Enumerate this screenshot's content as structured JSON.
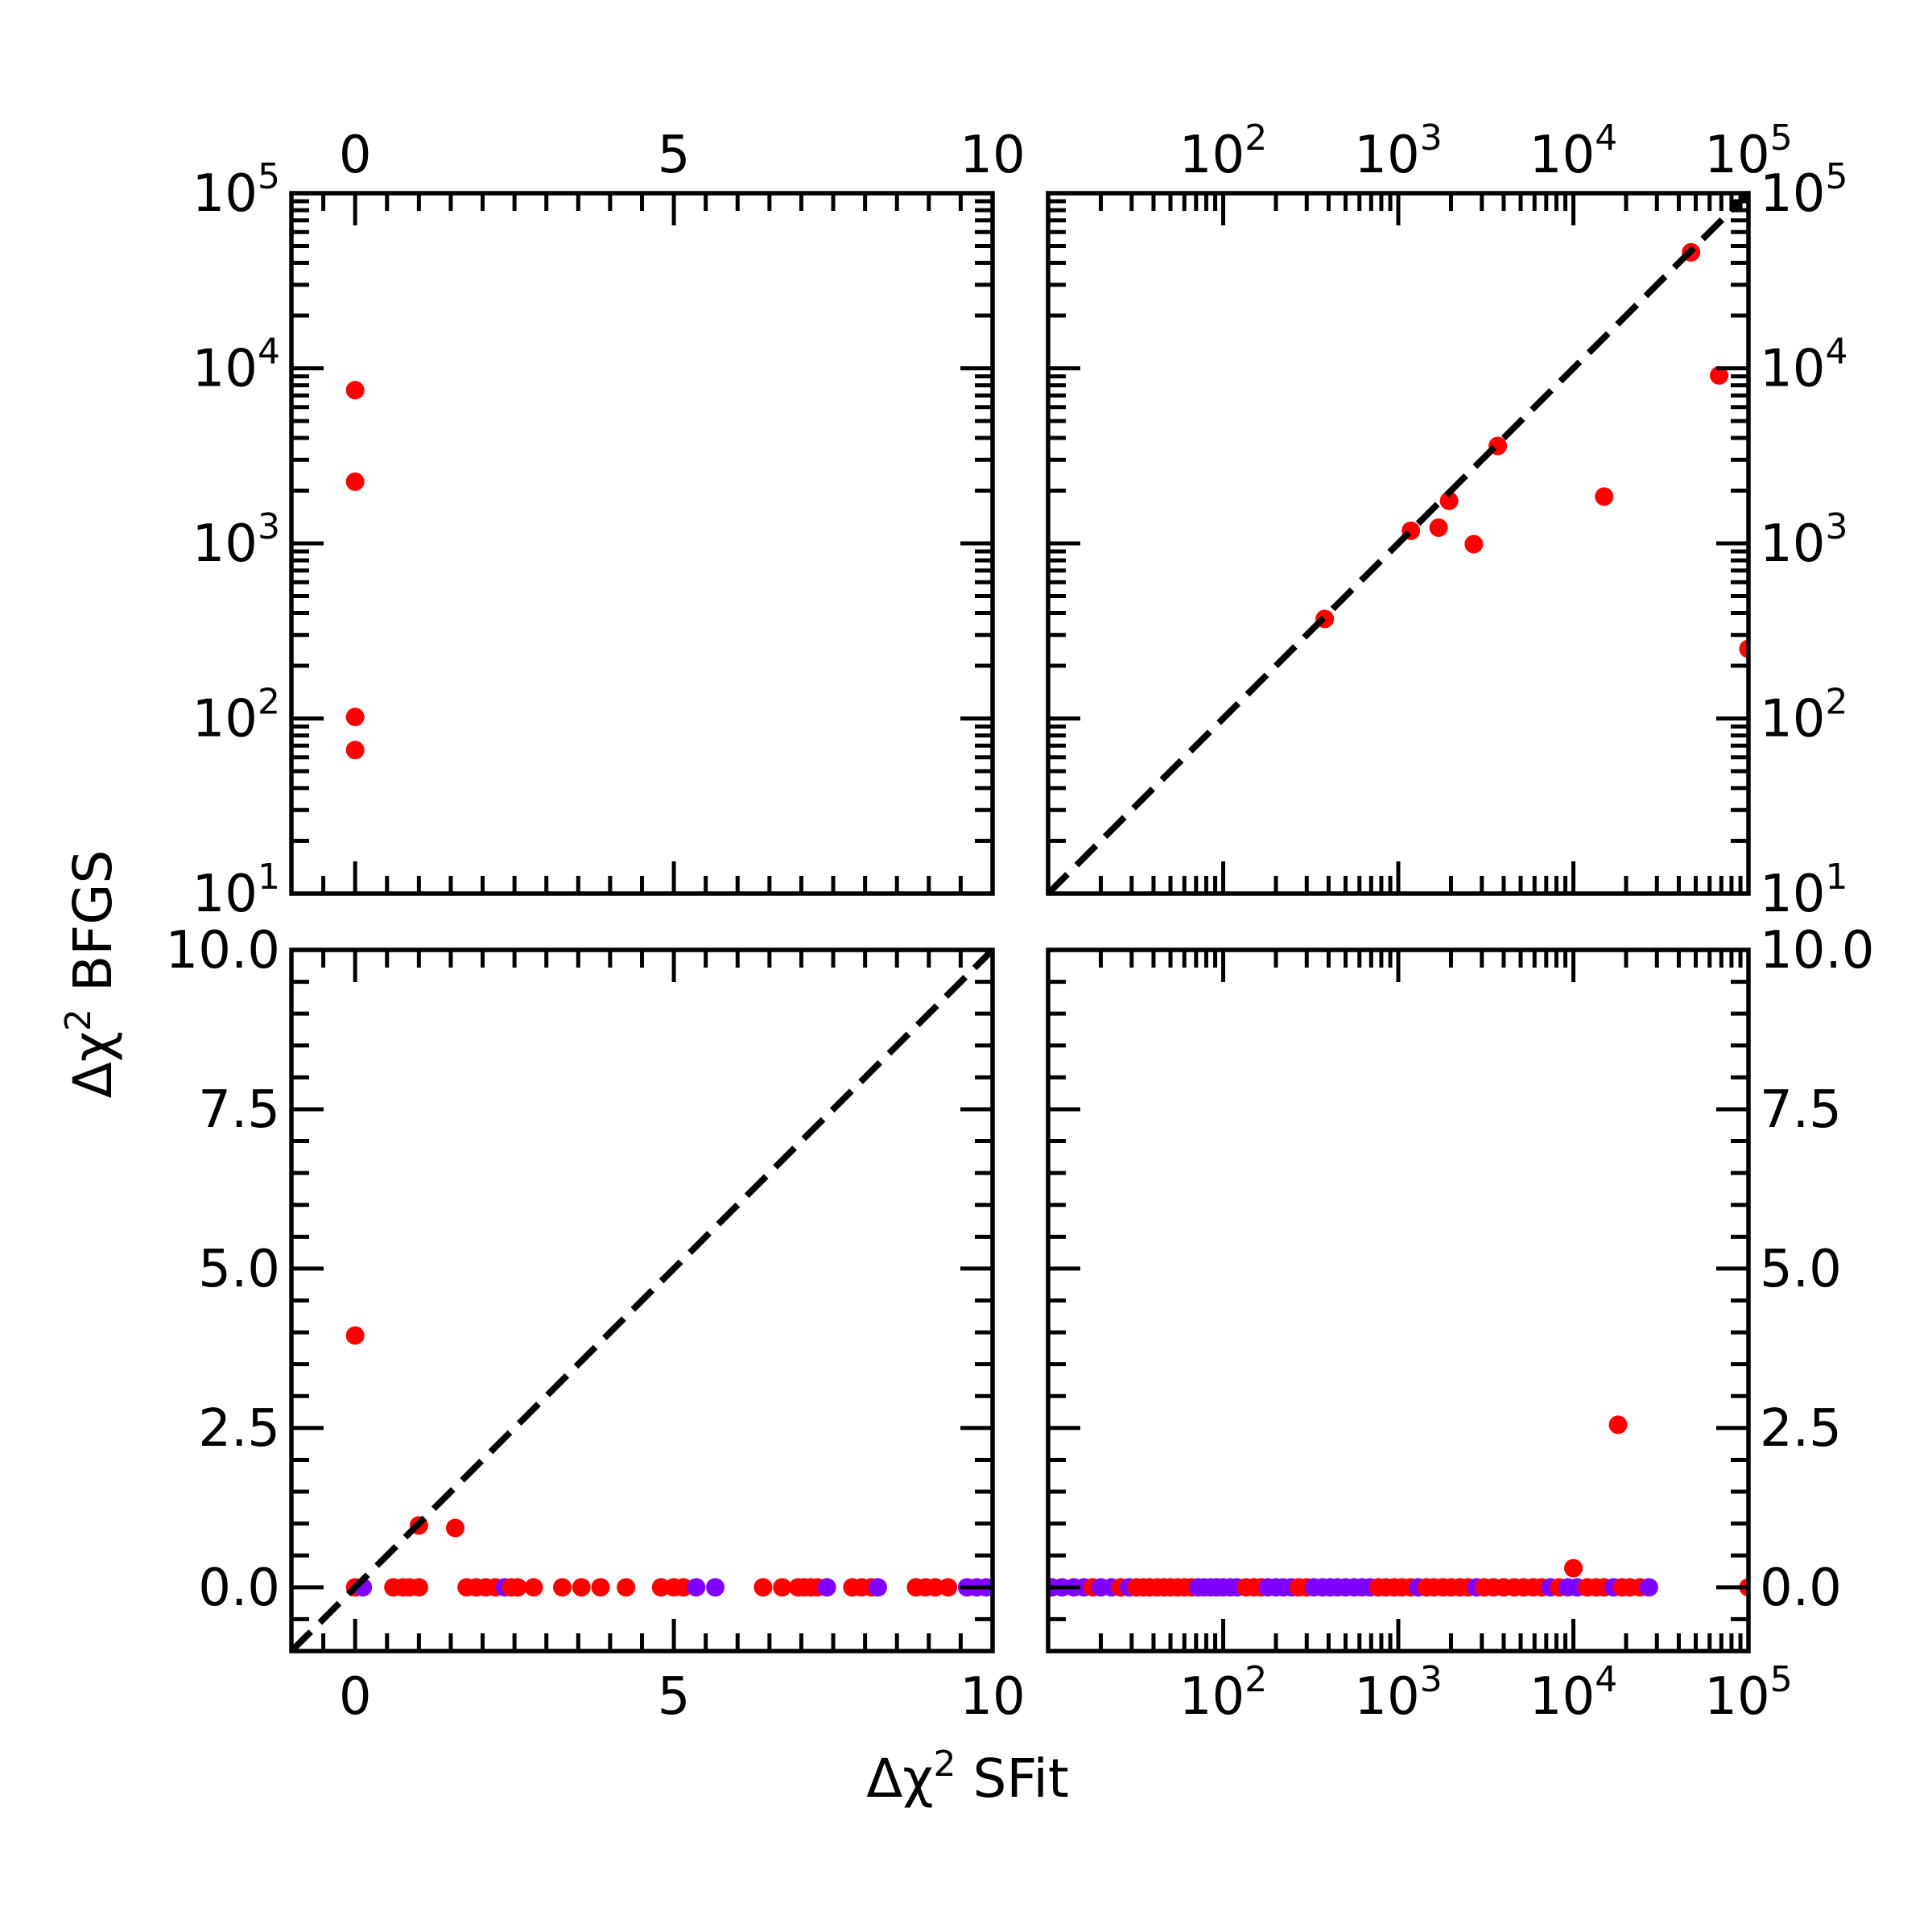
{
  "figure": {
    "xlabel_prefix": "Δχ",
    "xlabel_sup": "2",
    "xlabel_suffix": " SFit",
    "ylabel_prefix": "Δχ",
    "ylabel_sup": "2",
    "ylabel_suffix": " BFGS"
  },
  "colors": {
    "red": "#ff0000",
    "purple": "#7f00ff",
    "axis": "#000000"
  },
  "chart_data": [
    {
      "panel": "top-left",
      "type": "scatter",
      "xscale": "linear",
      "yscale": "log",
      "xlim": [
        -1,
        10
      ],
      "ylim": [
        10,
        100000
      ],
      "xticks": [
        {
          "v": 0,
          "t": "0"
        },
        {
          "v": 5,
          "t": "5"
        },
        {
          "v": 10,
          "t": "10"
        }
      ],
      "yticks": [
        {
          "v": 10,
          "b": "10",
          "e": "1"
        },
        {
          "v": 100,
          "b": "10",
          "e": "2"
        },
        {
          "v": 1000,
          "b": "10",
          "e": "3"
        },
        {
          "v": 10000,
          "b": "10",
          "e": "4"
        },
        {
          "v": 100000,
          "b": "10",
          "e": "5"
        }
      ],
      "xlabels_side": "top",
      "ylabels_side": "left",
      "points": [
        {
          "x": 0,
          "y": 7500,
          "c": "red"
        },
        {
          "x": 0,
          "y": 2250,
          "c": "red"
        },
        {
          "x": 0,
          "y": 102,
          "c": "red"
        },
        {
          "x": 0,
          "y": 66,
          "c": "red"
        }
      ]
    },
    {
      "panel": "top-right",
      "type": "scatter",
      "xscale": "log",
      "yscale": "log",
      "xlim": [
        10,
        100000
      ],
      "ylim": [
        10,
        100000
      ],
      "xticks": [
        {
          "v": 100,
          "b": "10",
          "e": "2"
        },
        {
          "v": 1000,
          "b": "10",
          "e": "3"
        },
        {
          "v": 10000,
          "b": "10",
          "e": "4"
        },
        {
          "v": 100000,
          "b": "10",
          "e": "5"
        }
      ],
      "yticks": [
        {
          "v": 10,
          "b": "10",
          "e": "1"
        },
        {
          "v": 100,
          "b": "10",
          "e": "2"
        },
        {
          "v": 1000,
          "b": "10",
          "e": "3"
        },
        {
          "v": 10000,
          "b": "10",
          "e": "4"
        },
        {
          "v": 100000,
          "b": "10",
          "e": "5"
        }
      ],
      "xlabels_side": "top",
      "ylabels_side": "right",
      "diagonal": true,
      "points": [
        {
          "x": 380,
          "y": 370,
          "c": "red"
        },
        {
          "x": 1180,
          "y": 1180,
          "c": "red"
        },
        {
          "x": 1700,
          "y": 1230,
          "c": "red"
        },
        {
          "x": 1950,
          "y": 1750,
          "c": "red"
        },
        {
          "x": 2700,
          "y": 990,
          "c": "red"
        },
        {
          "x": 3700,
          "y": 3600,
          "c": "red"
        },
        {
          "x": 15000,
          "y": 1850,
          "c": "red"
        },
        {
          "x": 47000,
          "y": 46000,
          "c": "red"
        },
        {
          "x": 68000,
          "y": 9100,
          "c": "red"
        },
        {
          "x": 100000,
          "y": 250,
          "c": "red"
        }
      ]
    },
    {
      "panel": "bottom-left",
      "type": "scatter",
      "xscale": "linear",
      "yscale": "linear",
      "xlim": [
        -1,
        10
      ],
      "ylim": [
        -1,
        10
      ],
      "xticks": [
        {
          "v": 0,
          "t": "0"
        },
        {
          "v": 5,
          "t": "5"
        },
        {
          "v": 10,
          "t": "10"
        }
      ],
      "yticks": [
        {
          "v": 0,
          "t": "0.0"
        },
        {
          "v": 2.5,
          "t": "2.5"
        },
        {
          "v": 5,
          "t": "5.0"
        },
        {
          "v": 7.5,
          "t": "7.5"
        },
        {
          "v": 10,
          "t": "10.0"
        }
      ],
      "xlabels_side": "bottom",
      "ylabels_side": "left",
      "diagonal": true,
      "points": [
        {
          "x": 0,
          "y": 3.95,
          "c": "red"
        },
        {
          "x": 1.0,
          "y": 0.97,
          "c": "red"
        },
        {
          "x": 1.57,
          "y": 0.93,
          "c": "red"
        },
        {
          "x": 0,
          "y": 0,
          "c": "red"
        },
        {
          "x": 0.12,
          "y": 0,
          "c": "purple"
        },
        {
          "x": 0.6,
          "y": 0,
          "c": "red"
        },
        {
          "x": 0.75,
          "y": 0,
          "c": "red"
        },
        {
          "x": 0.85,
          "y": 0,
          "c": "red"
        },
        {
          "x": 1.0,
          "y": 0,
          "c": "red"
        },
        {
          "x": 1.75,
          "y": 0,
          "c": "red"
        },
        {
          "x": 1.9,
          "y": 0,
          "c": "red"
        },
        {
          "x": 2.05,
          "y": 0,
          "c": "red"
        },
        {
          "x": 2.2,
          "y": 0,
          "c": "red"
        },
        {
          "x": 2.35,
          "y": 0,
          "c": "purple"
        },
        {
          "x": 2.45,
          "y": 0,
          "c": "red"
        },
        {
          "x": 2.55,
          "y": 0,
          "c": "red"
        },
        {
          "x": 2.8,
          "y": 0,
          "c": "red"
        },
        {
          "x": 3.25,
          "y": 0,
          "c": "red"
        },
        {
          "x": 3.55,
          "y": 0,
          "c": "red"
        },
        {
          "x": 3.85,
          "y": 0,
          "c": "red"
        },
        {
          "x": 4.25,
          "y": 0,
          "c": "red"
        },
        {
          "x": 4.8,
          "y": 0,
          "c": "red"
        },
        {
          "x": 5.0,
          "y": 0,
          "c": "red"
        },
        {
          "x": 5.15,
          "y": 0,
          "c": "red"
        },
        {
          "x": 5.35,
          "y": 0,
          "c": "purple"
        },
        {
          "x": 5.65,
          "y": 0,
          "c": "purple"
        },
        {
          "x": 6.4,
          "y": 0,
          "c": "red"
        },
        {
          "x": 6.7,
          "y": 0,
          "c": "red"
        },
        {
          "x": 6.95,
          "y": 0,
          "c": "red"
        },
        {
          "x": 7.05,
          "y": 0,
          "c": "red"
        },
        {
          "x": 7.15,
          "y": 0,
          "c": "red"
        },
        {
          "x": 7.25,
          "y": 0,
          "c": "red"
        },
        {
          "x": 7.4,
          "y": 0,
          "c": "purple"
        },
        {
          "x": 7.8,
          "y": 0,
          "c": "red"
        },
        {
          "x": 7.95,
          "y": 0,
          "c": "red"
        },
        {
          "x": 8.1,
          "y": 0,
          "c": "red"
        },
        {
          "x": 8.2,
          "y": 0,
          "c": "purple"
        },
        {
          "x": 8.8,
          "y": 0,
          "c": "red"
        },
        {
          "x": 8.95,
          "y": 0,
          "c": "red"
        },
        {
          "x": 9.1,
          "y": 0,
          "c": "red"
        },
        {
          "x": 9.3,
          "y": 0,
          "c": "red"
        },
        {
          "x": 9.6,
          "y": 0,
          "c": "purple"
        },
        {
          "x": 9.75,
          "y": 0,
          "c": "purple"
        },
        {
          "x": 9.9,
          "y": 0,
          "c": "purple"
        }
      ]
    },
    {
      "panel": "bottom-right",
      "type": "scatter",
      "xscale": "log",
      "yscale": "linear",
      "xlim": [
        10,
        100000
      ],
      "ylim": [
        -1,
        10
      ],
      "xticks": [
        {
          "v": 100,
          "b": "10",
          "e": "2"
        },
        {
          "v": 1000,
          "b": "10",
          "e": "3"
        },
        {
          "v": 10000,
          "b": "10",
          "e": "4"
        },
        {
          "v": 100000,
          "b": "10",
          "e": "5"
        }
      ],
      "yticks": [
        {
          "v": 0,
          "t": "0.0"
        },
        {
          "v": 2.5,
          "t": "2.5"
        },
        {
          "v": 5,
          "t": "5.0"
        },
        {
          "v": 7.5,
          "t": "7.5"
        },
        {
          "v": 10,
          "t": "10.0"
        }
      ],
      "xlabels_side": "bottom",
      "ylabels_side": "right",
      "points": [
        {
          "x": 18000,
          "y": 2.55,
          "c": "red"
        },
        {
          "x": 10000,
          "y": 0.3,
          "c": "red"
        },
        {
          "x": 100000,
          "y": 0,
          "c": "red"
        },
        {
          "x": 10.5,
          "y": 0,
          "c": "purple"
        },
        {
          "x": 12,
          "y": 0,
          "c": "purple"
        },
        {
          "x": 14,
          "y": 0,
          "c": "purple"
        },
        {
          "x": 16,
          "y": 0,
          "c": "purple"
        },
        {
          "x": 18,
          "y": 0,
          "c": "red"
        },
        {
          "x": 20,
          "y": 0,
          "c": "purple"
        },
        {
          "x": 23,
          "y": 0,
          "c": "purple"
        },
        {
          "x": 26,
          "y": 0,
          "c": "red"
        },
        {
          "x": 29,
          "y": 0,
          "c": "purple"
        },
        {
          "x": 32,
          "y": 0,
          "c": "red"
        },
        {
          "x": 35,
          "y": 0,
          "c": "red"
        },
        {
          "x": 38,
          "y": 0,
          "c": "red"
        },
        {
          "x": 42,
          "y": 0,
          "c": "red"
        },
        {
          "x": 46,
          "y": 0,
          "c": "red"
        },
        {
          "x": 50,
          "y": 0,
          "c": "red"
        },
        {
          "x": 55,
          "y": 0,
          "c": "red"
        },
        {
          "x": 60,
          "y": 0,
          "c": "red"
        },
        {
          "x": 66,
          "y": 0,
          "c": "red"
        },
        {
          "x": 72,
          "y": 0,
          "c": "purple"
        },
        {
          "x": 78,
          "y": 0,
          "c": "purple"
        },
        {
          "x": 85,
          "y": 0,
          "c": "purple"
        },
        {
          "x": 92,
          "y": 0,
          "c": "purple"
        },
        {
          "x": 100,
          "y": 0,
          "c": "purple"
        },
        {
          "x": 110,
          "y": 0,
          "c": "purple"
        },
        {
          "x": 120,
          "y": 0,
          "c": "purple"
        },
        {
          "x": 135,
          "y": 0,
          "c": "red"
        },
        {
          "x": 150,
          "y": 0,
          "c": "red"
        },
        {
          "x": 165,
          "y": 0,
          "c": "red"
        },
        {
          "x": 180,
          "y": 0,
          "c": "purple"
        },
        {
          "x": 200,
          "y": 0,
          "c": "purple"
        },
        {
          "x": 220,
          "y": 0,
          "c": "purple"
        },
        {
          "x": 245,
          "y": 0,
          "c": "purple"
        },
        {
          "x": 270,
          "y": 0,
          "c": "red"
        },
        {
          "x": 300,
          "y": 0,
          "c": "red"
        },
        {
          "x": 330,
          "y": 0,
          "c": "purple"
        },
        {
          "x": 370,
          "y": 0,
          "c": "purple"
        },
        {
          "x": 410,
          "y": 0,
          "c": "purple"
        },
        {
          "x": 450,
          "y": 0,
          "c": "purple"
        },
        {
          "x": 500,
          "y": 0,
          "c": "purple"
        },
        {
          "x": 560,
          "y": 0,
          "c": "purple"
        },
        {
          "x": 620,
          "y": 0,
          "c": "purple"
        },
        {
          "x": 690,
          "y": 0,
          "c": "purple"
        },
        {
          "x": 770,
          "y": 0,
          "c": "red"
        },
        {
          "x": 850,
          "y": 0,
          "c": "red"
        },
        {
          "x": 950,
          "y": 0,
          "c": "red"
        },
        {
          "x": 1050,
          "y": 0,
          "c": "red"
        },
        {
          "x": 1180,
          "y": 0,
          "c": "red"
        },
        {
          "x": 1300,
          "y": 0,
          "c": "purple"
        },
        {
          "x": 1450,
          "y": 0,
          "c": "red"
        },
        {
          "x": 1600,
          "y": 0,
          "c": "red"
        },
        {
          "x": 1800,
          "y": 0,
          "c": "red"
        },
        {
          "x": 2000,
          "y": 0,
          "c": "red"
        },
        {
          "x": 2250,
          "y": 0,
          "c": "red"
        },
        {
          "x": 2500,
          "y": 0,
          "c": "red"
        },
        {
          "x": 2800,
          "y": 0,
          "c": "purple"
        },
        {
          "x": 3100,
          "y": 0,
          "c": "red"
        },
        {
          "x": 3500,
          "y": 0,
          "c": "red"
        },
        {
          "x": 4000,
          "y": 0,
          "c": "red"
        },
        {
          "x": 4600,
          "y": 0,
          "c": "red"
        },
        {
          "x": 5200,
          "y": 0,
          "c": "red"
        },
        {
          "x": 5900,
          "y": 0,
          "c": "red"
        },
        {
          "x": 6600,
          "y": 0,
          "c": "red"
        },
        {
          "x": 7400,
          "y": 0,
          "c": "purple"
        },
        {
          "x": 8300,
          "y": 0,
          "c": "red"
        },
        {
          "x": 9300,
          "y": 0,
          "c": "purple"
        },
        {
          "x": 10500,
          "y": 0,
          "c": "purple"
        },
        {
          "x": 12000,
          "y": 0,
          "c": "red"
        },
        {
          "x": 13500,
          "y": 0,
          "c": "red"
        },
        {
          "x": 15000,
          "y": 0,
          "c": "red"
        },
        {
          "x": 17000,
          "y": 0,
          "c": "purple"
        },
        {
          "x": 19000,
          "y": 0,
          "c": "red"
        },
        {
          "x": 21000,
          "y": 0,
          "c": "red"
        },
        {
          "x": 24000,
          "y": 0,
          "c": "red"
        },
        {
          "x": 27000,
          "y": 0,
          "c": "purple"
        }
      ]
    }
  ]
}
